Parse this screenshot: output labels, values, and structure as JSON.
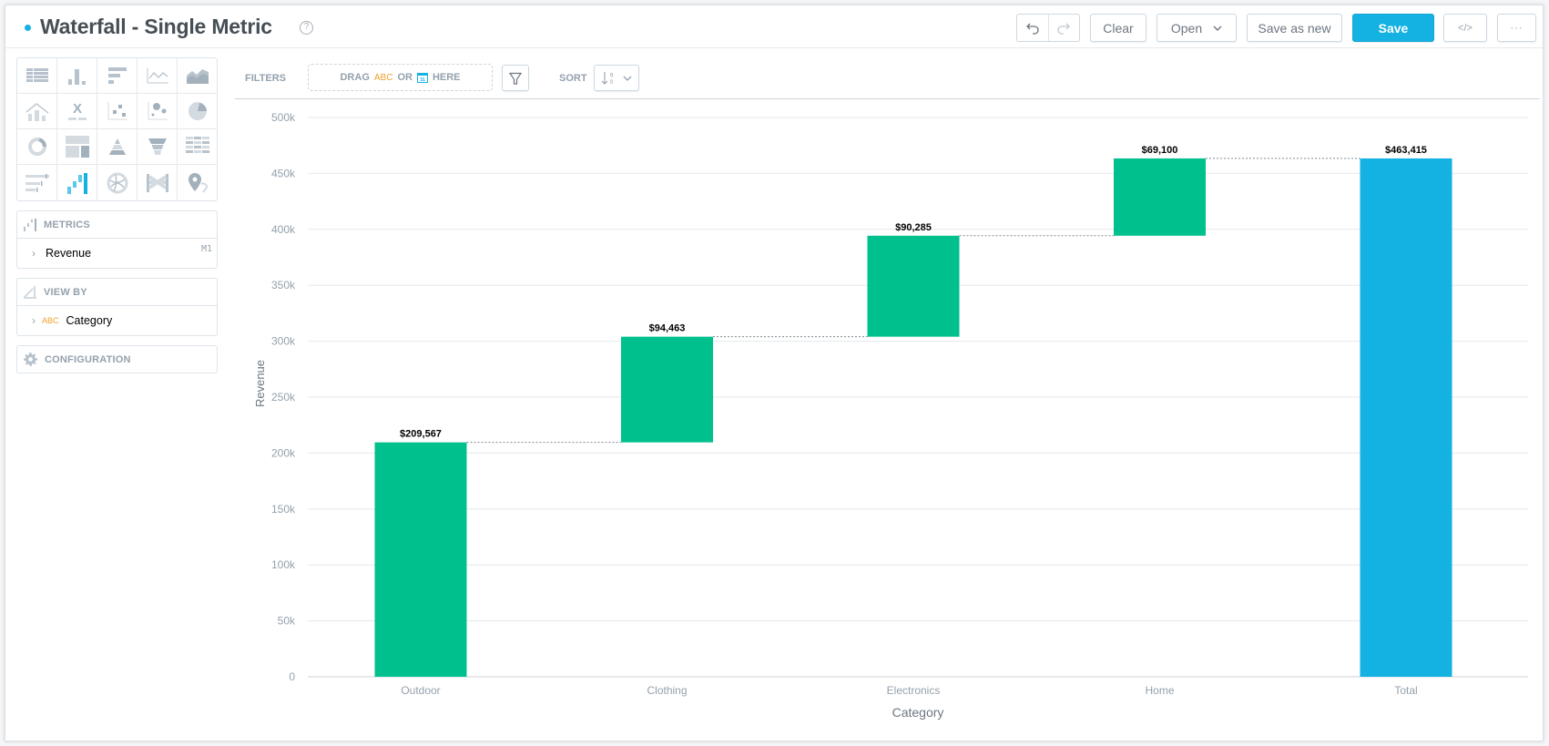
{
  "header": {
    "title": "Waterfall - Single Metric",
    "help_icon": "question-circle-icon",
    "buttons": {
      "undo": "undo-icon",
      "redo": "redo-icon",
      "clear": "Clear",
      "open": "Open",
      "save_as_new": "Save as new",
      "save": "Save",
      "embed": "</>",
      "more": "···"
    },
    "accent_color": "#14b2e2"
  },
  "sidebar": {
    "visualization_types": [
      "table",
      "column",
      "bar",
      "line",
      "area",
      "combo",
      "headline",
      "scatter",
      "bubble",
      "pie",
      "donut",
      "treemap",
      "pyramid",
      "funnel",
      "heatmap",
      "bullet",
      "waterfall",
      "dependency-wheel",
      "sankey",
      "geo-pushpin"
    ],
    "selected_type": "waterfall",
    "metrics": {
      "label": "METRICS",
      "items": [
        {
          "name": "Revenue",
          "tag": "M1"
        }
      ]
    },
    "view_by": {
      "label": "VIEW BY",
      "items": [
        {
          "type": "ABC",
          "name": "Category"
        }
      ]
    },
    "configuration": {
      "label": "CONFIGURATION"
    }
  },
  "filter_bar": {
    "filters_label": "FILTERS",
    "drop_zone": {
      "drag": "DRAG",
      "abc": "ABC",
      "or": "OR",
      "here": "HERE"
    },
    "sort_label": "SORT"
  },
  "chart_data": {
    "type": "waterfall",
    "title": "",
    "xlabel": "Category",
    "ylabel": "Revenue",
    "ylim": [
      0,
      500000
    ],
    "yticks": [
      "0",
      "50k",
      "100k",
      "150k",
      "200k",
      "250k",
      "300k",
      "350k",
      "400k",
      "450k",
      "500k"
    ],
    "categories": [
      "Outdoor",
      "Clothing",
      "Electronics",
      "Home",
      "Total"
    ],
    "values": [
      209567,
      94463,
      90285,
      69100,
      463415
    ],
    "labels": [
      "$209,567",
      "$94,463",
      "$90,285",
      "$69,100",
      "$463,415"
    ],
    "colors": {
      "increase": "#00c18d",
      "total": "#14b2e2"
    },
    "grid": true,
    "legend": "none"
  }
}
